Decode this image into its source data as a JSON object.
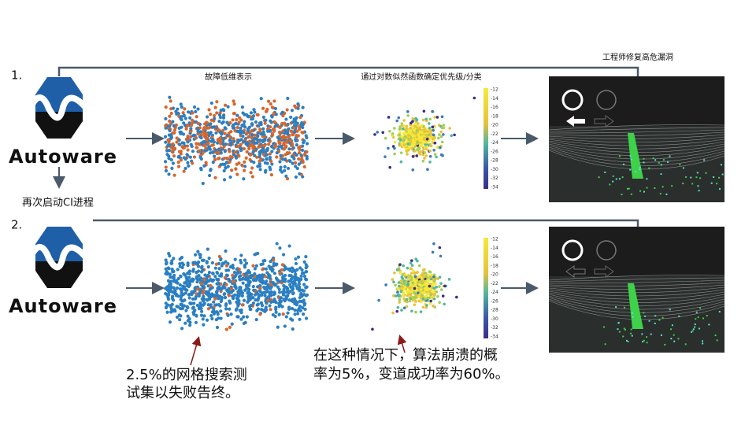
{
  "rows": [
    {
      "number": "1.",
      "logo": "Autoware"
    },
    {
      "number": "2.",
      "logo": "Autoware"
    }
  ],
  "restart_label": "再次启动CI进程",
  "headers": {
    "low_dim": "故障低维表示",
    "likelihood": "通过对数似然函数确定优先级/分类",
    "fix": "工程师修复高危漏洞"
  },
  "colorbar_ticks": [
    "-12",
    "-14",
    "-16",
    "-18",
    "-20",
    "-22",
    "-24",
    "-26",
    "-28",
    "-30",
    "-32",
    "-34"
  ],
  "annotations": {
    "grid_search": [
      "2.5%的网格搜索测",
      "试集以失败告终。"
    ],
    "crash_rate": [
      "在这种情况下，算法崩溃的概",
      "率为5%，变道成功率为60%。"
    ]
  }
}
